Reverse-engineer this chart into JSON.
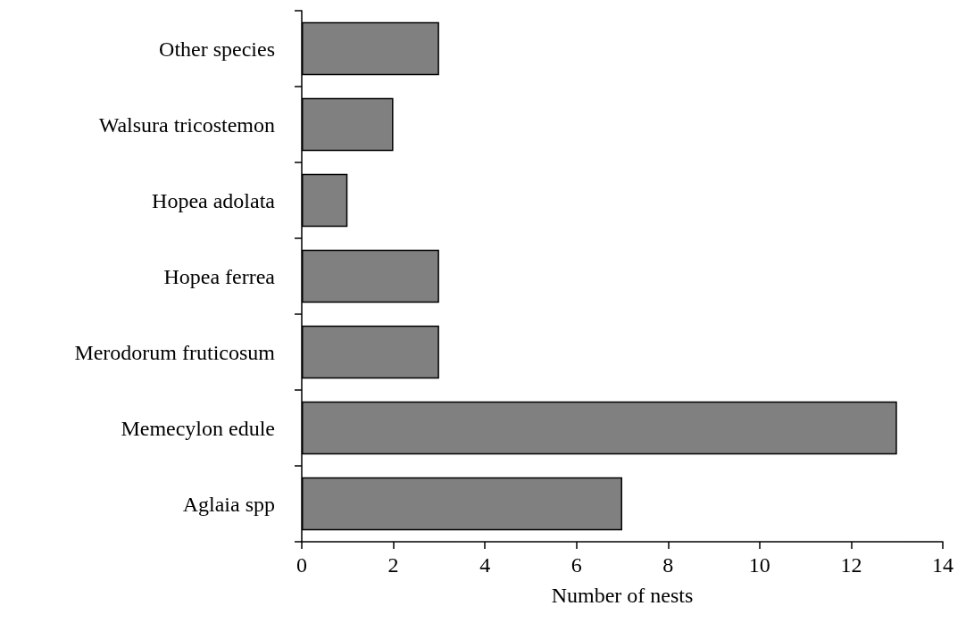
{
  "chart_data": {
    "type": "bar",
    "orientation": "horizontal",
    "xlabel": "Number of nests",
    "categories": [
      "Other species",
      "Walsura tricostemon",
      "Hopea adolata",
      "Hopea ferrea",
      "Merodorum fruticosum",
      "Memecylon edule",
      "Aglaia spp"
    ],
    "values": [
      3,
      2,
      1,
      3,
      3,
      13,
      7
    ],
    "color": "#808080",
    "xlim": [
      0,
      14
    ],
    "xticks": [
      0,
      2,
      4,
      6,
      8,
      10,
      12,
      14
    ],
    "grid": false
  }
}
